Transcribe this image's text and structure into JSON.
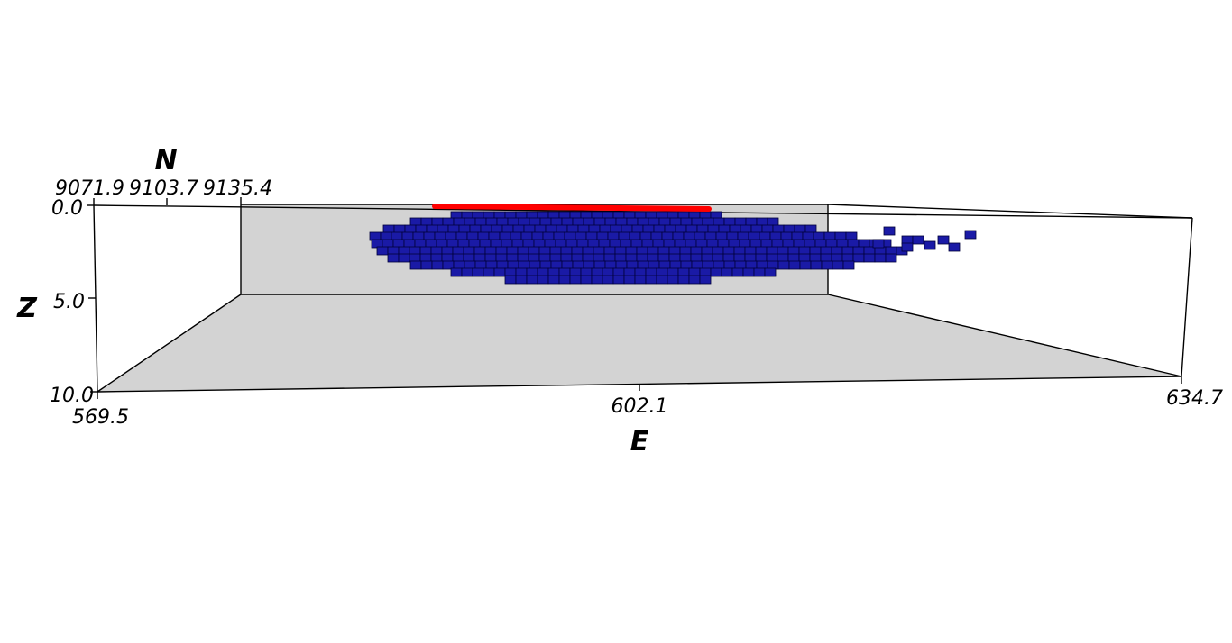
{
  "axes": {
    "z": {
      "title": "Z",
      "ticks": [
        "0.0",
        "5.0",
        "10.0"
      ]
    },
    "e": {
      "title": "E",
      "ticks": [
        "569.5",
        "602.1",
        "634.7"
      ]
    },
    "n": {
      "title": "N",
      "ticks": [
        "9071.9",
        "9103.7",
        "9135.4"
      ]
    }
  },
  "colors": {
    "background": "#ffffff",
    "box_faces": "#d3d3d3",
    "box_edges": "#000000",
    "body_blocks": "#1a1aa6",
    "body_edges": "#00003a",
    "surface_trace": "#ff0000"
  }
}
